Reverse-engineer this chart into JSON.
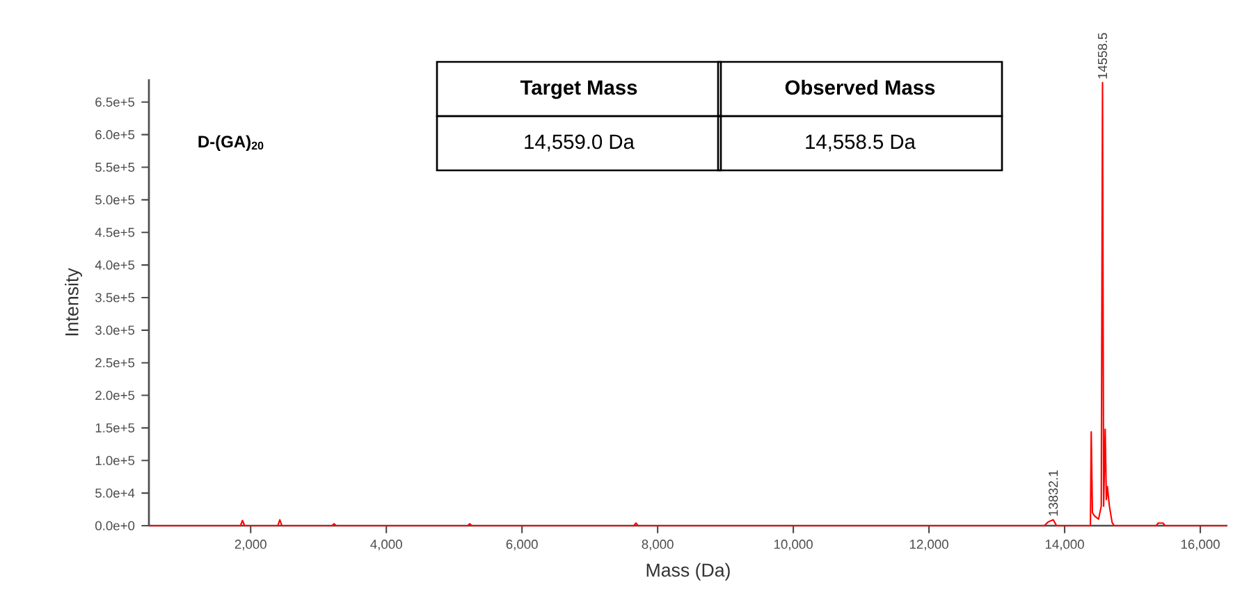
{
  "chart_data": {
    "type": "line",
    "xlabel": "Mass (Da)",
    "ylabel": "Intensity",
    "color": "#ff0000",
    "marker": "none",
    "line_style": "solid",
    "xlim": [
      500,
      16400
    ],
    "ylim": [
      0,
      685000
    ],
    "xticks": [
      {
        "value": 2000,
        "label": "2,000"
      },
      {
        "value": 4000,
        "label": "4,000"
      },
      {
        "value": 6000,
        "label": "6,000"
      },
      {
        "value": 8000,
        "label": "8,000"
      },
      {
        "value": 10000,
        "label": "10,000"
      },
      {
        "value": 12000,
        "label": "12,000"
      },
      {
        "value": 14000,
        "label": "14,000"
      },
      {
        "value": 16000,
        "label": "16,000"
      }
    ],
    "yticks": [
      {
        "value": 0,
        "label": "0.0e+0"
      },
      {
        "value": 50000,
        "label": "5.0e+4"
      },
      {
        "value": 100000,
        "label": "1.0e+5"
      },
      {
        "value": 150000,
        "label": "1.5e+5"
      },
      {
        "value": 200000,
        "label": "2.0e+5"
      },
      {
        "value": 250000,
        "label": "2.5e+5"
      },
      {
        "value": 300000,
        "label": "3.0e+5"
      },
      {
        "value": 350000,
        "label": "3.5e+5"
      },
      {
        "value": 400000,
        "label": "4.0e+5"
      },
      {
        "value": 450000,
        "label": "4.5e+5"
      },
      {
        "value": 500000,
        "label": "5.0e+5"
      },
      {
        "value": 550000,
        "label": "5.5e+5"
      },
      {
        "value": 600000,
        "label": "6.0e+5"
      },
      {
        "value": 650000,
        "label": "6.5e+5"
      }
    ],
    "x": [
      500,
      1850,
      1880,
      1910,
      2400,
      2430,
      2460,
      3200,
      3230,
      3260,
      5200,
      5230,
      5260,
      7650,
      7680,
      7710,
      13700,
      13760,
      13832.1,
      13880,
      14380,
      14392,
      14410,
      14440,
      14500,
      14540,
      14558.5,
      14575,
      14598,
      14615,
      14630,
      14660,
      14700,
      14730,
      15350,
      15380,
      15450,
      15480,
      16400
    ],
    "values": [
      0,
      0,
      8000,
      0,
      0,
      9000,
      0,
      0,
      3000,
      0,
      0,
      3000,
      0,
      0,
      4000,
      0,
      0,
      6000,
      9000,
      0,
      0,
      144000,
      20000,
      15000,
      10000,
      30000,
      680000,
      30000,
      148000,
      40000,
      60000,
      30000,
      5000,
      0,
      0,
      4000,
      4000,
      0,
      0
    ],
    "annotations": [
      {
        "text": "14558.5",
        "x": 14558.5,
        "y": 680000
      },
      {
        "text": "13832.1",
        "x": 13832.1,
        "y": 9000
      },
      "D-(GA)$_{20}$",
      "Target Mass",
      "Observed Mass",
      "14,559.0 Da",
      "14,558.5 Da"
    ]
  }
}
